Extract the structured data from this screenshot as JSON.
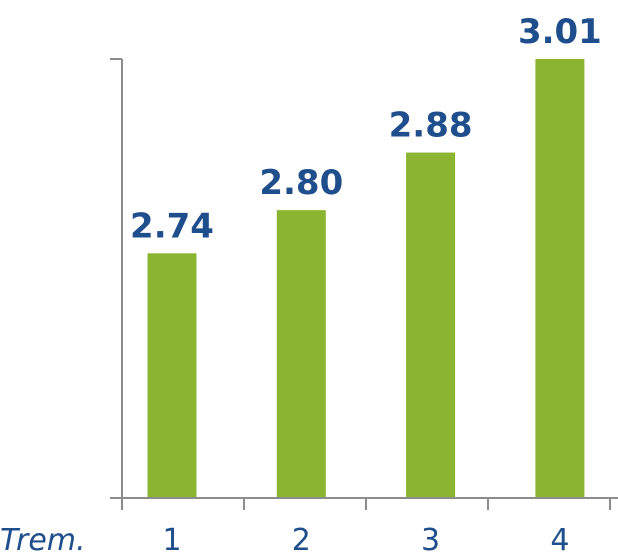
{
  "chart_data": {
    "type": "bar",
    "categories": [
      "1",
      "2",
      "3",
      "4"
    ],
    "values": [
      2.74,
      2.8,
      2.88,
      3.01
    ],
    "data_labels": [
      "2.74",
      "2.80",
      "2.88",
      "3.01"
    ],
    "title": "",
    "xlabel": "Trem.",
    "ylabel": "",
    "ylim": [
      2.4,
      3.01
    ],
    "grid": false,
    "legend": "none",
    "colors": {
      "bar": "#8bb431",
      "data_label": "#1f4e8c",
      "axis": "#8c8c8c",
      "tick_label": "#1f4e8c"
    }
  }
}
